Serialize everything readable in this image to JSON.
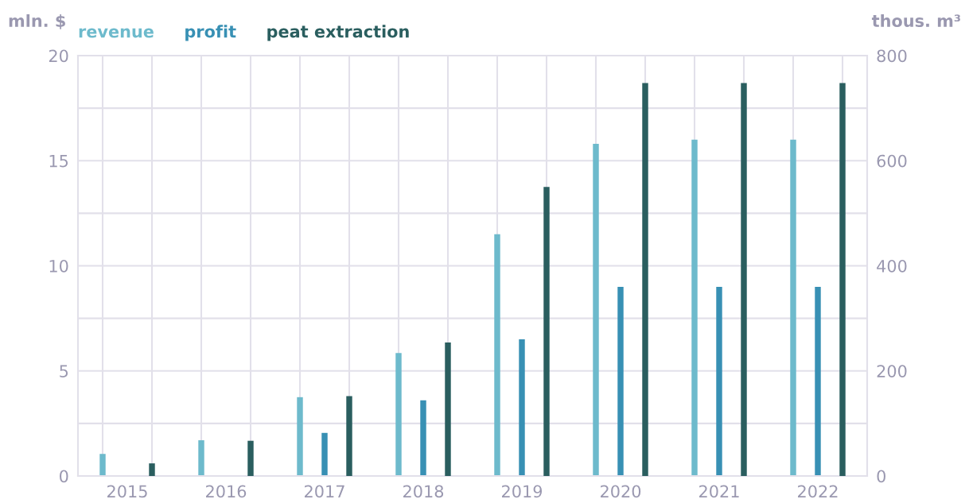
{
  "chart_data": {
    "type": "bar",
    "ylabel": "mln. $",
    "y2label": "thous. m³",
    "categories": [
      "2015",
      "2016",
      "2017",
      "2018",
      "2019",
      "2020",
      "2021",
      "2022"
    ],
    "series": [
      {
        "name": "revenue",
        "color": "#6dbacc",
        "values": [
          1.05,
          1.7,
          3.75,
          5.85,
          11.5,
          15.8,
          16,
          16
        ]
      },
      {
        "name": "profit",
        "color": "#3890b4",
        "values": [
          null,
          null,
          2.05,
          3.6,
          6.5,
          9,
          9,
          9
        ]
      },
      {
        "name": "peat extraction",
        "color": "#2a5e5f",
        "axis": "y2",
        "values": [
          24,
          67,
          152,
          254,
          550,
          748,
          748,
          748
        ]
      }
    ],
    "ylim": [
      0,
      20
    ],
    "yticks": [
      0,
      {
        "value": 2.5,
        "label": null
      },
      5,
      {
        "value": 7.5,
        "label": null
      },
      10,
      {
        "value": 12.5,
        "label": null
      },
      15,
      {
        "value": 17.5,
        "label": null
      },
      20
    ],
    "y2lim": [
      0,
      800
    ],
    "y2ticks": [
      0,
      200,
      400,
      600,
      800
    ],
    "grid": true,
    "legend": "top left"
  }
}
